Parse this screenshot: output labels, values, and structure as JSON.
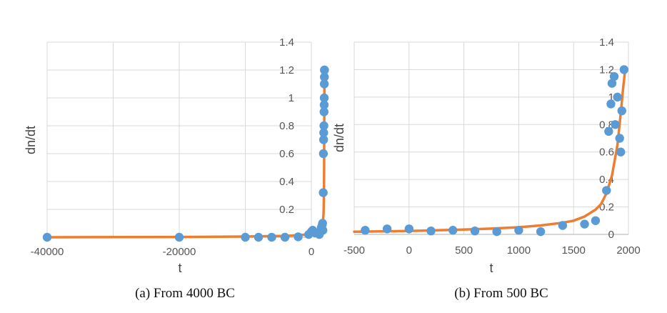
{
  "chart_data": [
    {
      "type": "scatter",
      "caption": "(a) From 4000 BC",
      "xlabel": "t",
      "ylabel": "dn/dt",
      "xlim": [
        -40000,
        0
      ],
      "ylim": [
        0,
        1.4
      ],
      "xticks": [
        "-40000",
        "-20000",
        "0"
      ],
      "yticks": [
        "0.2",
        "0.4",
        "0.6",
        "0.8",
        "1",
        "1.2",
        "1.4"
      ],
      "grid": true,
      "colors": {
        "points": "#5b9bd5",
        "fit": "#ed7d31"
      },
      "series": [
        {
          "kind": "points",
          "x": [
            -40000,
            -20000,
            -10000,
            -8000,
            -6000,
            -4000,
            -2000,
            -400,
            0,
            200,
            600,
            1000,
            1200,
            1500,
            1650,
            1700,
            1750,
            1800,
            1820,
            1850,
            1870,
            1900,
            1920,
            1940,
            1950,
            1960,
            1970,
            1980,
            1990
          ],
          "y": [
            0,
            0,
            0,
            0,
            0,
            0,
            0.003,
            0.02,
            0.04,
            0.05,
            0.03,
            0.03,
            0.02,
            0.07,
            0.09,
            0.1,
            0.05,
            0.32,
            0.6,
            0.7,
            0.75,
            0.8,
            0.9,
            0.95,
            1.0,
            1.1,
            1.15,
            1.2,
            1.2
          ]
        },
        {
          "kind": "fit-line",
          "x": [
            -40000,
            -20000,
            -10000,
            -4000,
            -2000,
            0,
            500,
            1000,
            1500,
            1700,
            1800,
            1850,
            1900,
            1930,
            1950,
            1970,
            1990
          ],
          "y": [
            0.0,
            0.002,
            0.005,
            0.01,
            0.015,
            0.022,
            0.03,
            0.045,
            0.08,
            0.11,
            0.14,
            0.17,
            0.3,
            0.5,
            0.72,
            1.0,
            1.2
          ]
        }
      ]
    },
    {
      "type": "scatter",
      "caption": "(b) From 500 BC",
      "xlabel": "t",
      "ylabel": "dn/dt",
      "xlim": [
        -500,
        2000
      ],
      "ylim": [
        0,
        1.4
      ],
      "xticks": [
        "-500",
        "0",
        "500",
        "1000",
        "1500",
        "2000"
      ],
      "yticks": [
        "0",
        "0.2",
        "0.4",
        "0.6",
        "0.8",
        "1",
        "1.2",
        "1.4"
      ],
      "grid": true,
      "colors": {
        "points": "#5b9bd5",
        "fit": "#ed7d31"
      },
      "series": [
        {
          "kind": "points",
          "x": [
            -400,
            -200,
            0,
            200,
            400,
            600,
            800,
            1000,
            1200,
            1400,
            1600,
            1700,
            1800,
            1820,
            1840,
            1850,
            1870,
            1880,
            1900,
            1920,
            1930,
            1940,
            1960
          ],
          "y": [
            0.03,
            0.04,
            0.04,
            0.025,
            0.03,
            0.025,
            0.02,
            0.03,
            0.02,
            0.065,
            0.075,
            0.1,
            0.32,
            0.75,
            0.95,
            1.1,
            1.15,
            0.8,
            1.0,
            0.7,
            0.6,
            0.9,
            1.2
          ]
        },
        {
          "kind": "fit-line",
          "x": [
            -500,
            -250,
            0,
            250,
            500,
            750,
            1000,
            1200,
            1400,
            1500,
            1600,
            1700,
            1750,
            1800,
            1850,
            1900,
            1930,
            1950,
            1970
          ],
          "y": [
            0.02,
            0.022,
            0.025,
            0.03,
            0.035,
            0.042,
            0.052,
            0.065,
            0.085,
            0.1,
            0.13,
            0.18,
            0.22,
            0.3,
            0.43,
            0.65,
            0.88,
            1.05,
            1.2
          ]
        }
      ]
    }
  ]
}
